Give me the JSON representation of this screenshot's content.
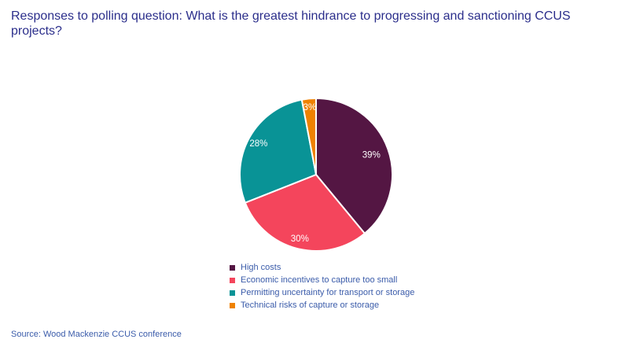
{
  "header": {
    "title": "Responses to polling question: What is the greatest hindrance to progressing and sanctioning CCUS projects?"
  },
  "footer": {
    "source": "Source: Wood Mackenzie CCUS conference"
  },
  "colors": {
    "background": "#FFFFFF",
    "title_text": "#2B2E8B",
    "body_text": "#3B5CAA",
    "slice_label_text": "#FFFFFF",
    "slice_border": "#FFFFFF"
  },
  "chart_data": {
    "type": "pie",
    "title": "Responses to polling question: What is the greatest hindrance to progressing and sanctioning CCUS projects?",
    "start_angle_deg": 0,
    "direction": "clockwise",
    "legend_position": "bottom",
    "data_labels": "percent",
    "slices": [
      {
        "label": "High costs",
        "value": 39,
        "pct_label": "39%",
        "color": "#541643"
      },
      {
        "label": "Economic incentives to capture too small",
        "value": 30,
        "pct_label": "30%",
        "color": "#F4455C"
      },
      {
        "label": "Permitting uncertainty for transport or storage",
        "value": 28,
        "pct_label": "28%",
        "color": "#099396"
      },
      {
        "label": "Technical risks of capture or storage",
        "value": 3,
        "pct_label": "3%",
        "color": "#EF8200"
      }
    ]
  }
}
